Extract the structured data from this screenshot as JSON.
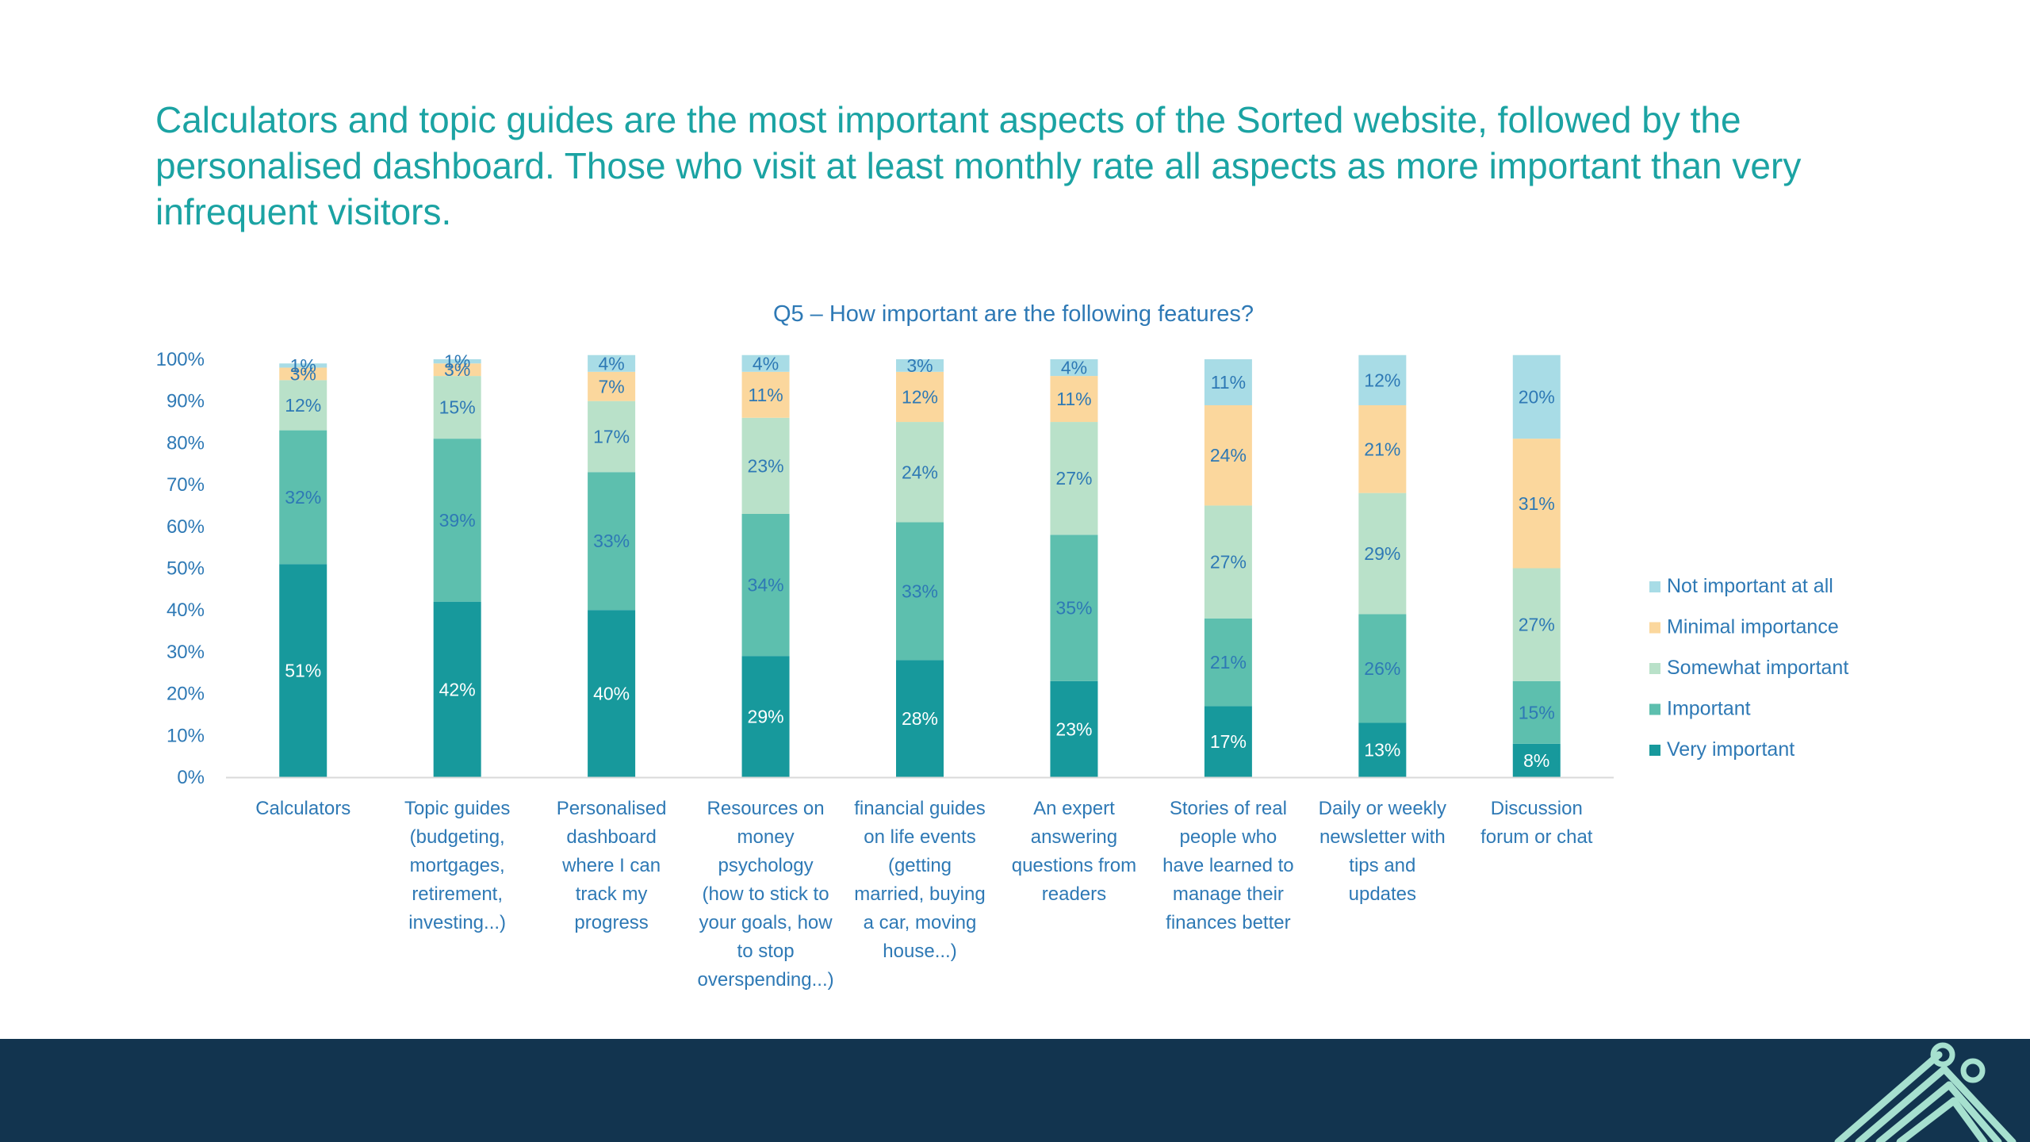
{
  "headline": "Calculators and topic guides are the most important aspects of the Sorted website, followed by the personalised dashboard. Those who visit at least monthly rate all aspects as more important than very infrequent visitors.",
  "colors": {
    "headline": "#1ba3a3",
    "chart_title": "#2e79b5",
    "axis_text": "#2e79b5",
    "footer": "#12344f",
    "logo": "#a6e0cf"
  },
  "chart_data": {
    "type": "bar",
    "stacked": true,
    "percent_stacked": true,
    "title": "Q5 – How important are the following features?",
    "xlabel": "",
    "ylabel": "",
    "ylim": [
      0,
      100
    ],
    "yticks": [
      "0%",
      "10%",
      "20%",
      "30%",
      "40%",
      "50%",
      "60%",
      "70%",
      "80%",
      "90%",
      "100%"
    ],
    "grid": false,
    "legend_position": "right",
    "categories": [
      [
        "Calculators"
      ],
      [
        "Topic guides",
        "(budgeting,",
        "mortgages,",
        "retirement,",
        "investing...)"
      ],
      [
        "Personalised",
        "dashboard",
        "where I can",
        "track my",
        "progress"
      ],
      [
        "Resources on",
        "money",
        "psychology",
        "(how to stick to",
        "your goals, how",
        "to stop",
        "overspending...)"
      ],
      [
        "financial guides",
        "on life events",
        "(getting",
        "married, buying",
        "a car, moving",
        "house...)"
      ],
      [
        "An expert",
        "answering",
        "questions from",
        "readers"
      ],
      [
        "Stories of real",
        "people who",
        "have learned to",
        "manage their",
        "finances better"
      ],
      [
        "Daily or weekly",
        "newsletter with",
        "tips and",
        "updates"
      ],
      [
        "Discussion",
        "forum or chat"
      ]
    ],
    "series": [
      {
        "name": "Very important",
        "color": "#17999c",
        "label_color": "#ffffff",
        "values": [
          51,
          42,
          40,
          29,
          28,
          23,
          17,
          13,
          8
        ]
      },
      {
        "name": "Important",
        "color": "#5dbfae",
        "label_color": "#2e79b5",
        "values": [
          32,
          39,
          33,
          34,
          33,
          35,
          21,
          26,
          15
        ]
      },
      {
        "name": "Somewhat important",
        "color": "#b9e1c9",
        "label_color": "#2e79b5",
        "values": [
          12,
          15,
          17,
          23,
          24,
          27,
          27,
          29,
          27
        ]
      },
      {
        "name": "Minimal importance",
        "color": "#fbd79d",
        "label_color": "#2e79b5",
        "values": [
          3,
          3,
          7,
          11,
          12,
          11,
          24,
          21,
          31
        ]
      },
      {
        "name": "Not important at all",
        "color": "#a8dce6",
        "label_color": "#2e79b5",
        "values": [
          1,
          1,
          4,
          4,
          3,
          4,
          11,
          12,
          20
        ]
      }
    ],
    "legend_order": [
      "Not important at all",
      "Minimal importance",
      "Somewhat important",
      "Important",
      "Very important"
    ]
  }
}
